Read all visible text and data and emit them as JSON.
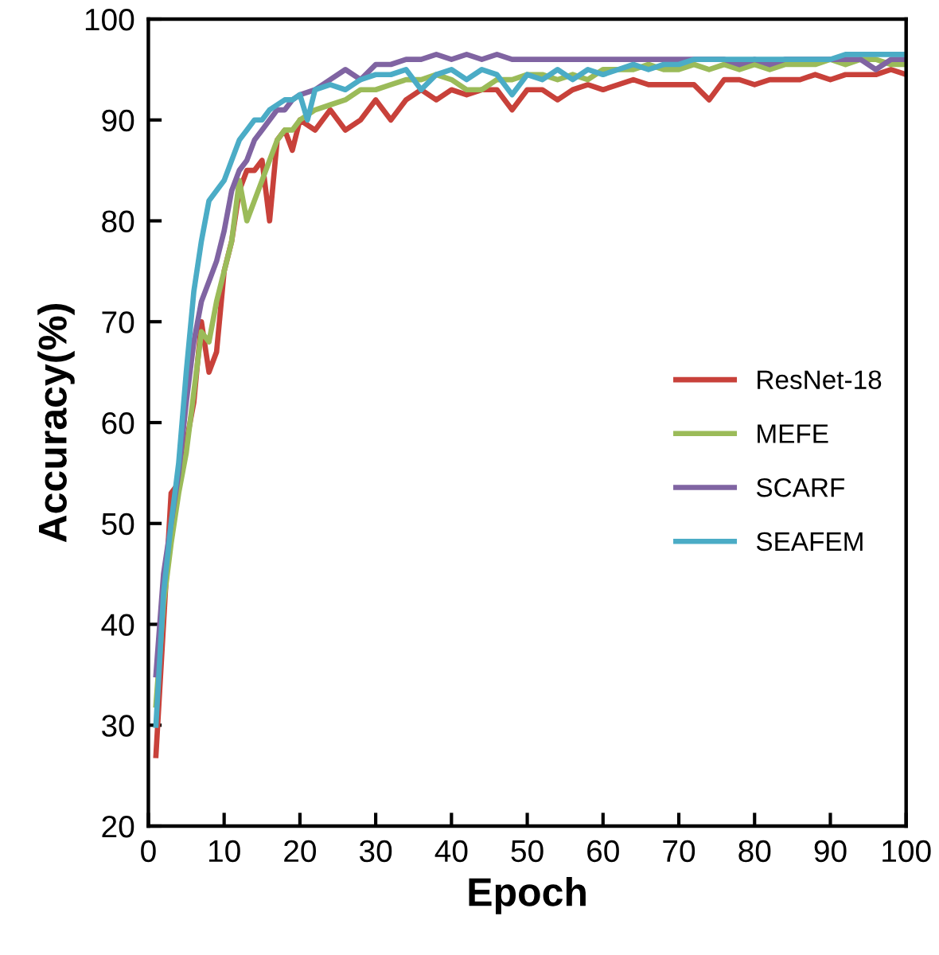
{
  "chart_data": {
    "type": "line",
    "xlabel": "Epoch",
    "ylabel": "Accuracy(%)",
    "xlim": [
      0,
      100
    ],
    "ylim": [
      20,
      100
    ],
    "xticks": [
      0,
      10,
      20,
      30,
      40,
      50,
      60,
      70,
      80,
      90,
      100
    ],
    "yticks": [
      20,
      30,
      40,
      50,
      60,
      70,
      80,
      90,
      100
    ],
    "grid": false,
    "legend": "right",
    "marker": "none",
    "line_style": "solid",
    "series": [
      {
        "name": "ResNet-18",
        "color": "#c8413a",
        "x": [
          1,
          2,
          3,
          4,
          5,
          6,
          7,
          8,
          9,
          10,
          11,
          12,
          13,
          14,
          15,
          16,
          17,
          18,
          19,
          20,
          22,
          24,
          26,
          28,
          30,
          32,
          34,
          36,
          38,
          40,
          42,
          44,
          46,
          48,
          50,
          52,
          54,
          56,
          58,
          60,
          62,
          64,
          66,
          68,
          70,
          72,
          74,
          76,
          78,
          80,
          82,
          84,
          86,
          88,
          90,
          92,
          94,
          96,
          98,
          100
        ],
        "values": [
          27,
          40,
          53,
          54,
          58,
          62,
          70,
          65,
          67,
          75,
          78,
          83,
          85,
          85,
          86,
          80,
          88,
          89,
          87,
          90,
          89,
          91,
          89,
          90,
          92,
          90,
          92,
          93,
          92,
          93,
          92.5,
          93,
          93,
          91,
          93,
          93,
          92,
          93,
          93.5,
          93,
          93.5,
          94,
          93.5,
          93.5,
          93.5,
          93.5,
          92,
          94,
          94,
          93.5,
          94,
          94,
          94,
          94.5,
          94,
          94.5,
          94.5,
          94.5,
          95,
          94.5
        ]
      },
      {
        "name": "MEFE",
        "color": "#9bbb59",
        "x": [
          1,
          2,
          3,
          4,
          5,
          6,
          7,
          8,
          9,
          10,
          11,
          12,
          13,
          14,
          15,
          16,
          17,
          18,
          19,
          20,
          22,
          24,
          26,
          28,
          30,
          32,
          34,
          36,
          38,
          40,
          42,
          44,
          46,
          48,
          50,
          52,
          54,
          56,
          58,
          60,
          62,
          64,
          66,
          68,
          70,
          72,
          74,
          76,
          78,
          80,
          82,
          84,
          86,
          88,
          90,
          92,
          94,
          96,
          98,
          100
        ],
        "values": [
          32,
          42,
          48,
          53,
          57,
          63,
          69,
          68,
          72,
          75,
          78,
          84,
          80,
          82,
          84,
          86,
          88,
          89,
          89,
          90,
          91,
          91.5,
          92,
          93,
          93,
          93.5,
          94,
          94,
          94.5,
          94,
          93,
          93,
          94,
          94,
          94.5,
          94.5,
          94,
          94.5,
          94,
          95,
          95,
          95,
          95.5,
          95,
          95,
          95.5,
          95,
          95.5,
          95,
          95.5,
          95,
          95.5,
          95.5,
          95.5,
          96,
          95.5,
          96,
          96,
          95.5,
          95.5
        ]
      },
      {
        "name": "SCARF",
        "color": "#8064a2",
        "x": [
          1,
          2,
          3,
          4,
          5,
          6,
          7,
          8,
          9,
          10,
          11,
          12,
          13,
          14,
          15,
          16,
          17,
          18,
          19,
          20,
          22,
          24,
          26,
          28,
          30,
          32,
          34,
          36,
          38,
          40,
          42,
          44,
          46,
          48,
          50,
          52,
          54,
          56,
          58,
          60,
          62,
          64,
          66,
          68,
          70,
          72,
          74,
          76,
          78,
          80,
          82,
          84,
          86,
          88,
          90,
          92,
          94,
          96,
          98,
          100
        ],
        "values": [
          35,
          45,
          50,
          55,
          62,
          68,
          72,
          74,
          76,
          79,
          83,
          85,
          86,
          88,
          89,
          90,
          91,
          91,
          92,
          92.5,
          93,
          94,
          95,
          94,
          95.5,
          95.5,
          96,
          96,
          96.5,
          96,
          96.5,
          96,
          96.5,
          96,
          96,
          96,
          96,
          96,
          96,
          96,
          96,
          96,
          96,
          96,
          96,
          96,
          96,
          96,
          95.5,
          96,
          95.5,
          96,
          96,
          96,
          96,
          96,
          96,
          95,
          96,
          96
        ]
      },
      {
        "name": "SEAFEM",
        "color": "#4bacc6",
        "x": [
          1,
          2,
          3,
          4,
          5,
          6,
          7,
          8,
          9,
          10,
          11,
          12,
          13,
          14,
          15,
          16,
          17,
          18,
          19,
          20,
          21,
          22,
          24,
          26,
          28,
          30,
          32,
          34,
          36,
          38,
          40,
          42,
          44,
          46,
          48,
          50,
          52,
          54,
          56,
          58,
          60,
          62,
          64,
          66,
          68,
          70,
          72,
          74,
          76,
          78,
          80,
          82,
          84,
          86,
          88,
          90,
          92,
          94,
          96,
          98,
          100
        ],
        "values": [
          30,
          43,
          50,
          56,
          65,
          73,
          78,
          82,
          83,
          84,
          86,
          88,
          89,
          90,
          90,
          91,
          91.5,
          92,
          92,
          92.5,
          90,
          93,
          93.5,
          93,
          94,
          94.5,
          94.5,
          95,
          93,
          94.5,
          95,
          94,
          95,
          94.5,
          92.5,
          94.5,
          94,
          95,
          94,
          95,
          94.5,
          95,
          95.5,
          95,
          95.5,
          95.5,
          96,
          96,
          96,
          96,
          96,
          96,
          96,
          96,
          96,
          96,
          96.5,
          96.5,
          96.5,
          96.5,
          96.5
        ]
      }
    ]
  }
}
